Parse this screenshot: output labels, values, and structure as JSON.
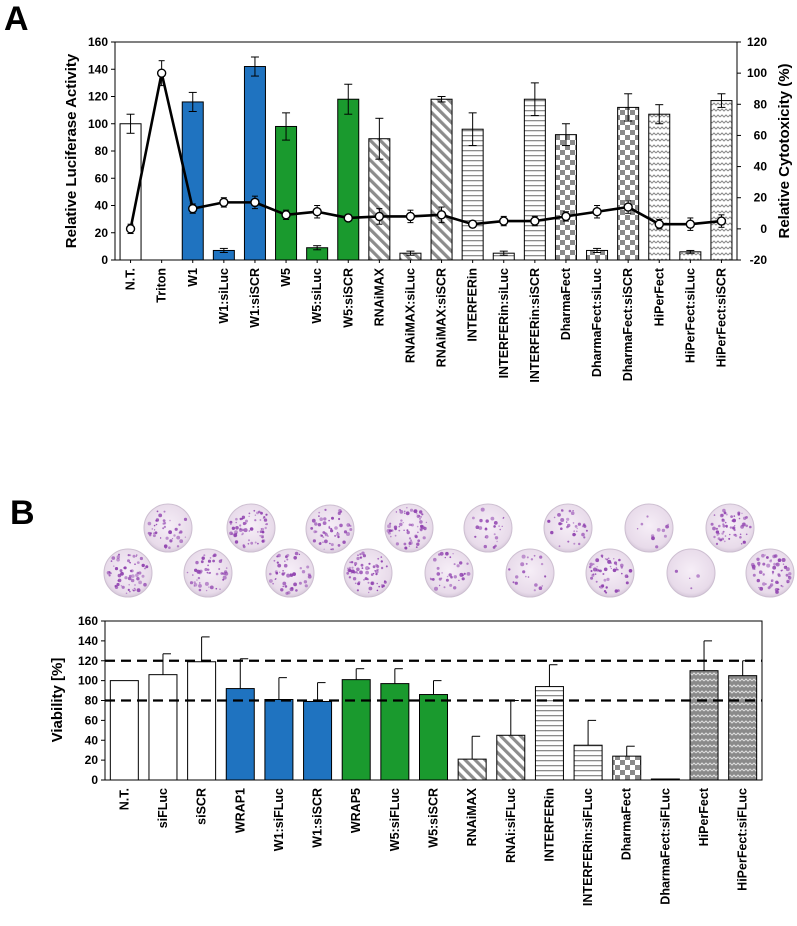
{
  "chart_data": [
    {
      "panel": "A",
      "type": "bar",
      "title": "",
      "ylabel": "Relative Luciferase Activity",
      "ylim": [
        0,
        160
      ],
      "yticks": [
        "0",
        "20",
        "40",
        "60",
        "80",
        "100",
        "120",
        "140",
        "160"
      ],
      "y2label": "Relative Cytotoxicity (%)",
      "y2lim": [
        -20,
        120
      ],
      "y2ticks": [
        "-20",
        "0",
        "20",
        "40",
        "60",
        "80",
        "100",
        "120"
      ],
      "categories": [
        "N.T.",
        "Triton",
        "W1",
        "W1:siLuc",
        "W1:siSCR",
        "W5",
        "W5:siLuc",
        "W5:siSCR",
        "RNAiMAX",
        "RNAiMAX:siLuc",
        "RNAiMAX:siSCR",
        "INTERFERin",
        "INTERFERin:siLuc",
        "INTERFERin:siSCR",
        "DharmaFect",
        "DharmaFect:siLuc",
        "DharmaFect:siSCR",
        "HiPerFect",
        "HiPerFect:siLuc",
        "HiPerFect:siSCR"
      ],
      "series": [
        {
          "name": "Relative Luciferase Activity",
          "kind": "bar",
          "values": [
            100,
            null,
            116,
            7,
            142,
            98,
            9,
            118,
            89,
            5,
            118,
            96,
            5,
            118,
            92,
            7,
            112,
            107,
            6,
            117
          ],
          "errors": [
            7,
            null,
            7,
            1.5,
            7,
            10,
            1.5,
            11,
            15,
            1.5,
            2,
            12,
            1.5,
            12,
            8,
            1.5,
            10,
            7,
            1,
            5
          ]
        },
        {
          "name": "Relative Cytotoxicity (%)",
          "kind": "line",
          "axis": "right",
          "values": [
            0,
            100,
            13,
            17,
            17,
            9,
            11,
            7,
            8,
            8,
            9,
            3,
            5,
            5,
            8,
            11,
            14,
            3,
            3,
            5
          ],
          "errors": [
            3,
            8,
            3,
            3,
            4,
            3,
            4,
            2,
            5,
            4,
            5,
            2,
            3,
            3,
            3,
            4,
            4,
            3,
            4,
            4
          ]
        }
      ],
      "bar_styles": [
        "white",
        "white",
        "blue",
        "blue",
        "blue",
        "green",
        "green",
        "green",
        "diagonal",
        "diagonal",
        "diagonal",
        "horizontal",
        "horizontal",
        "horizontal",
        "checker",
        "checker",
        "checker",
        "wave",
        "wave",
        "wave"
      ],
      "colors": {
        "blue": "#1f73c0",
        "green": "#1a9a2e",
        "line": "#000000"
      }
    },
    {
      "panel": "B",
      "type": "bar",
      "title": "",
      "ylabel": "Viability [%]",
      "ylim": [
        0,
        160
      ],
      "yticks": [
        "0",
        "20",
        "40",
        "60",
        "80",
        "100",
        "120",
        "140",
        "160"
      ],
      "reference_lines": [
        80,
        120
      ],
      "categories": [
        "N.T.",
        "siFLuc",
        "siSCR",
        "WRAP1",
        "W1:siFLuc",
        "W1:siSCR",
        "WRAP5",
        "W5:siFLuc",
        "W5:siSCR",
        "RNAiMAX",
        "RNAi:siFLuc",
        "INTERFERin",
        "INTERFERin:siFLuc",
        "DharmaFect",
        "DharmaFect:siFLuc",
        "HiPerFect",
        "HiPerFect:siFLuc"
      ],
      "series": [
        {
          "name": "Viability [%]",
          "kind": "bar",
          "values": [
            100,
            106,
            119,
            92,
            81,
            79,
            101,
            97,
            86,
            21,
            45,
            94,
            35,
            24,
            1,
            110,
            105
          ],
          "errors": [
            0,
            21,
            25,
            30,
            22,
            19,
            11,
            15,
            14,
            23,
            35,
            22,
            25,
            10,
            0,
            30,
            15
          ]
        }
      ],
      "bar_styles": [
        "white",
        "white",
        "white",
        "blue",
        "blue",
        "blue",
        "green",
        "green",
        "green",
        "diagonal",
        "diagonal",
        "horizontal",
        "horizontal",
        "checker",
        "checker",
        "wave",
        "wave"
      ],
      "colors": {
        "blue": "#1f73c0",
        "green": "#1a9a2e",
        "reference_line": "#000000"
      }
    }
  ],
  "panel_labels": {
    "a": "A",
    "b": "B"
  },
  "plate_image": {
    "description_icon": "stained-wells-photo",
    "well_count": 17,
    "stain_color": "#8e3fae"
  }
}
